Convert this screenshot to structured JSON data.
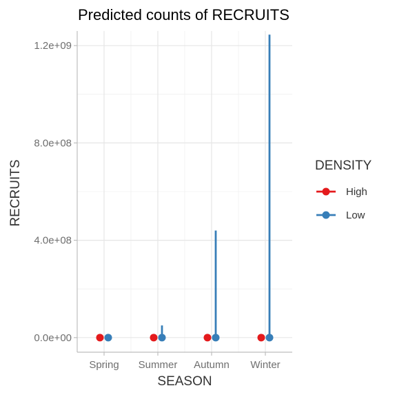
{
  "chart_data": {
    "type": "scatter",
    "title": "Predicted counts of RECRUITS",
    "xlabel": "SEASON",
    "ylabel": "RECRUITS",
    "categories": [
      "Spring",
      "Summer",
      "Autumn",
      "Winter"
    ],
    "ylim": [
      -60000000,
      1260000000
    ],
    "yticks": [
      0,
      400000000,
      800000000,
      1200000000
    ],
    "ytick_labels": [
      "0.0e+00",
      "4.0e+08",
      "8.0e+08",
      "1.2e+09"
    ],
    "grid": true,
    "legend": {
      "title": "DENSITY",
      "position": "right"
    },
    "series": [
      {
        "name": "High",
        "color": "#e41a1c",
        "values": [
          0,
          0,
          0,
          0
        ],
        "upper": [
          0,
          0,
          0,
          0
        ]
      },
      {
        "name": "Low",
        "color": "#377eb8",
        "values": [
          0,
          0,
          0,
          0
        ],
        "upper": [
          0,
          50000000,
          440000000,
          1245000000
        ]
      }
    ]
  }
}
